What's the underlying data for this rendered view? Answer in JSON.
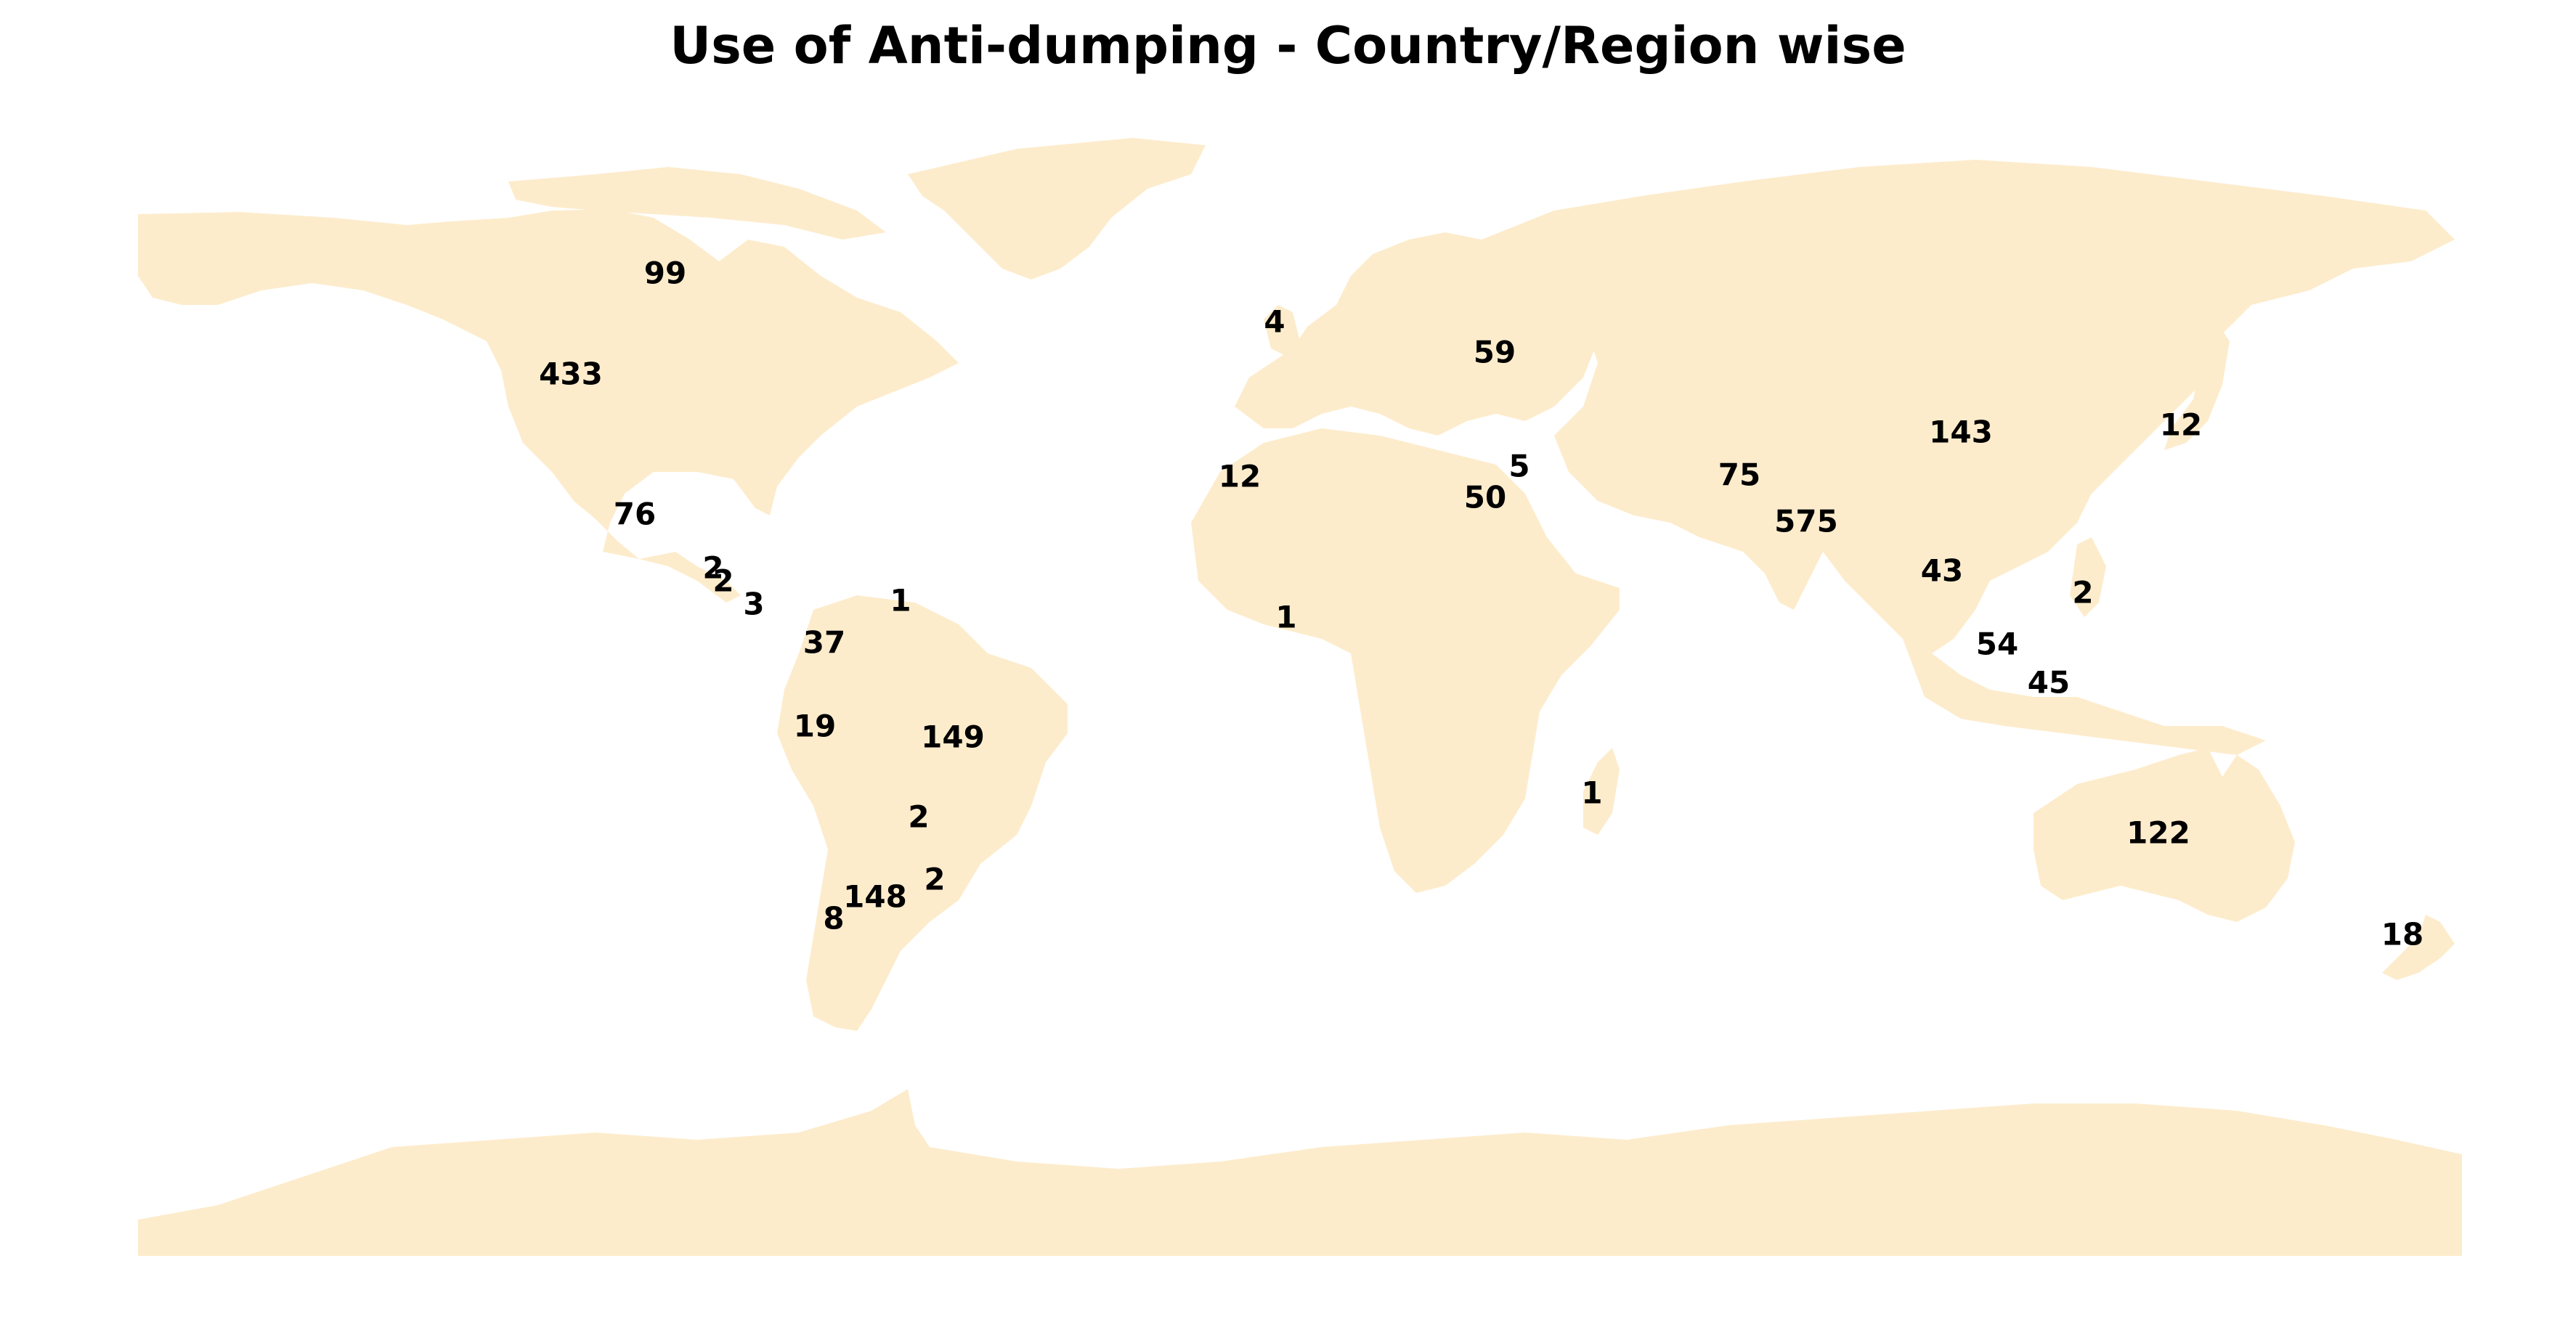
{
  "title": "Use of Anti-dumping - Country/Region wise",
  "land_color": "#FDECCC",
  "background_color": "#FFFFFF",
  "labels": [
    {
      "id": "canada",
      "value": "99"
    },
    {
      "id": "usa",
      "value": "433"
    },
    {
      "id": "mexico",
      "value": "76"
    },
    {
      "id": "central-america-a",
      "value": "2"
    },
    {
      "id": "central-america-b",
      "value": "2"
    },
    {
      "id": "central-america-c",
      "value": "3"
    },
    {
      "id": "caribbean",
      "value": "1"
    },
    {
      "id": "colombia",
      "value": "37"
    },
    {
      "id": "peru",
      "value": "19"
    },
    {
      "id": "brazil",
      "value": "149"
    },
    {
      "id": "paraguay",
      "value": "2"
    },
    {
      "id": "uruguay",
      "value": "2"
    },
    {
      "id": "argentina",
      "value": "148"
    },
    {
      "id": "chile",
      "value": "8"
    },
    {
      "id": "uk",
      "value": "4"
    },
    {
      "id": "ukraine",
      "value": "59"
    },
    {
      "id": "morocco",
      "value": "12"
    },
    {
      "id": "israel",
      "value": "5"
    },
    {
      "id": "egypt",
      "value": "50"
    },
    {
      "id": "west-africa",
      "value": "1"
    },
    {
      "id": "madagascar",
      "value": "1"
    },
    {
      "id": "pakistan",
      "value": "75"
    },
    {
      "id": "india",
      "value": "575"
    },
    {
      "id": "china",
      "value": "143"
    },
    {
      "id": "japan",
      "value": "12"
    },
    {
      "id": "thailand",
      "value": "43"
    },
    {
      "id": "philippines",
      "value": "2"
    },
    {
      "id": "malaysia",
      "value": "54"
    },
    {
      "id": "indonesia",
      "value": "45"
    },
    {
      "id": "australia",
      "value": "122"
    },
    {
      "id": "new-zealand",
      "value": "18"
    }
  ]
}
